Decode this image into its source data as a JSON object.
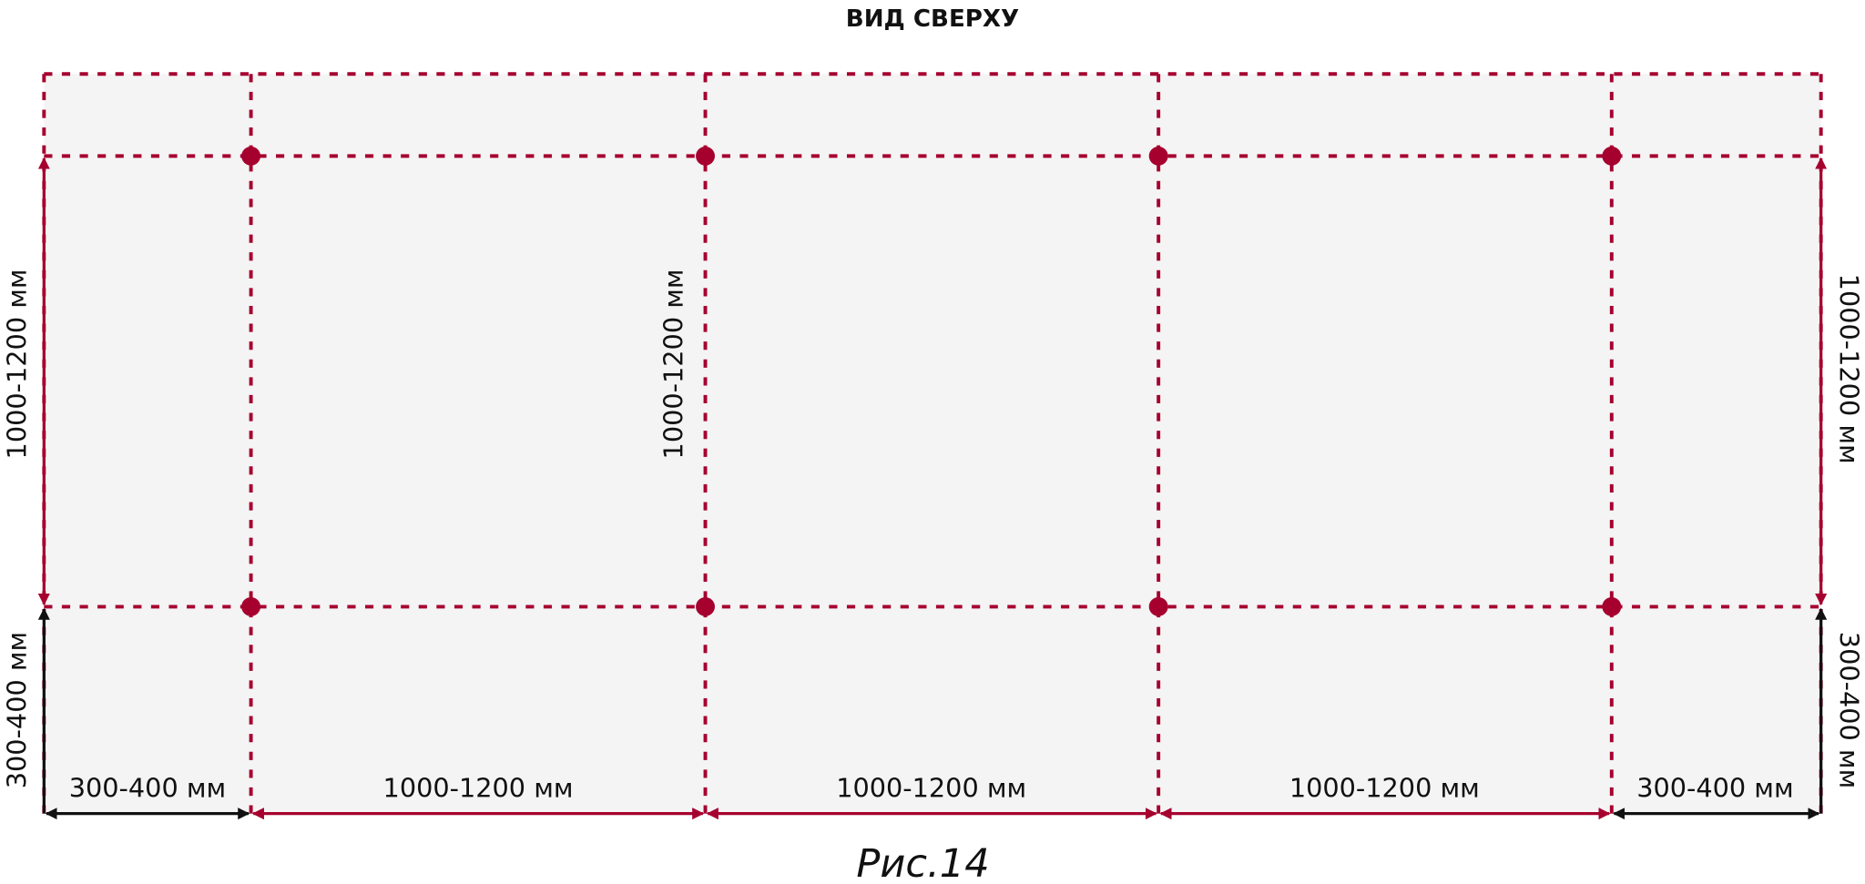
{
  "title": "ВИД СВЕРХУ",
  "caption": "Рис.14",
  "colors": {
    "accent": "#a6002f",
    "background_area": "#f4f4f4",
    "dimension_black": "#111111"
  },
  "dimensions": {
    "left_height": "1000-1200 мм",
    "middle_height": "1000-1200 мм",
    "right_height": "1000-1200 мм",
    "left_overhang_vertical": "300-400 мм",
    "right_overhang_vertical": "300-400 мм",
    "bottom": [
      "300-400 мм",
      "1000-1200 мм",
      "1000-1200 мм",
      "1000-1200 мм",
      "300-400 мм"
    ]
  }
}
